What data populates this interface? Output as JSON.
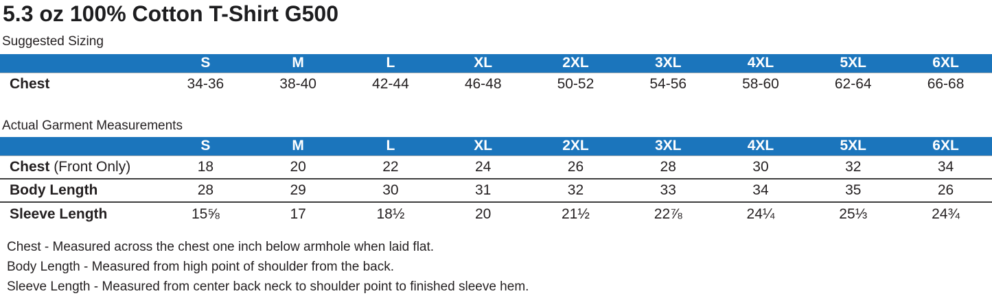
{
  "page": {
    "title": "5.3 oz 100% Cotton T-Shirt G500"
  },
  "colors": {
    "header_blue": "#1b75bc",
    "header_text": "#ffffff",
    "body_text": "#231f20"
  },
  "suggested_sizing": {
    "label": "Suggested Sizing",
    "columns": [
      "S",
      "M",
      "L",
      "XL",
      "2XL",
      "3XL",
      "4XL",
      "5XL",
      "6XL"
    ],
    "rows": [
      {
        "label": "Chest",
        "values": [
          "34-36",
          "38-40",
          "42-44",
          "46-48",
          "50-52",
          "54-56",
          "58-60",
          "62-64",
          "66-68"
        ]
      }
    ]
  },
  "garment_measurements": {
    "label": "Actual Garment Measurements",
    "columns": [
      "S",
      "M",
      "L",
      "XL",
      "2XL",
      "3XL",
      "4XL",
      "5XL",
      "6XL"
    ],
    "rows": [
      {
        "label": "Chest",
        "label_suffix": " (Front Only)",
        "values": [
          "18",
          "20",
          "22",
          "24",
          "26",
          "28",
          "30",
          "32",
          "34"
        ]
      },
      {
        "label": "Body Length",
        "values": [
          "28",
          "29",
          "30",
          "31",
          "32",
          "33",
          "34",
          "35",
          "26"
        ]
      },
      {
        "label": "Sleeve Length",
        "values": [
          "15⅝",
          "17",
          "18½",
          "20",
          "21½",
          "22⅞",
          "24¼",
          "25⅓",
          "24¾"
        ]
      }
    ]
  },
  "notes": [
    "Chest - Measured across the chest one inch below armhole when laid flat.",
    "Body Length - Measured from high point of shoulder from the back.",
    "Sleeve Length - Measured from center back neck to shoulder point to finished sleeve hem."
  ]
}
